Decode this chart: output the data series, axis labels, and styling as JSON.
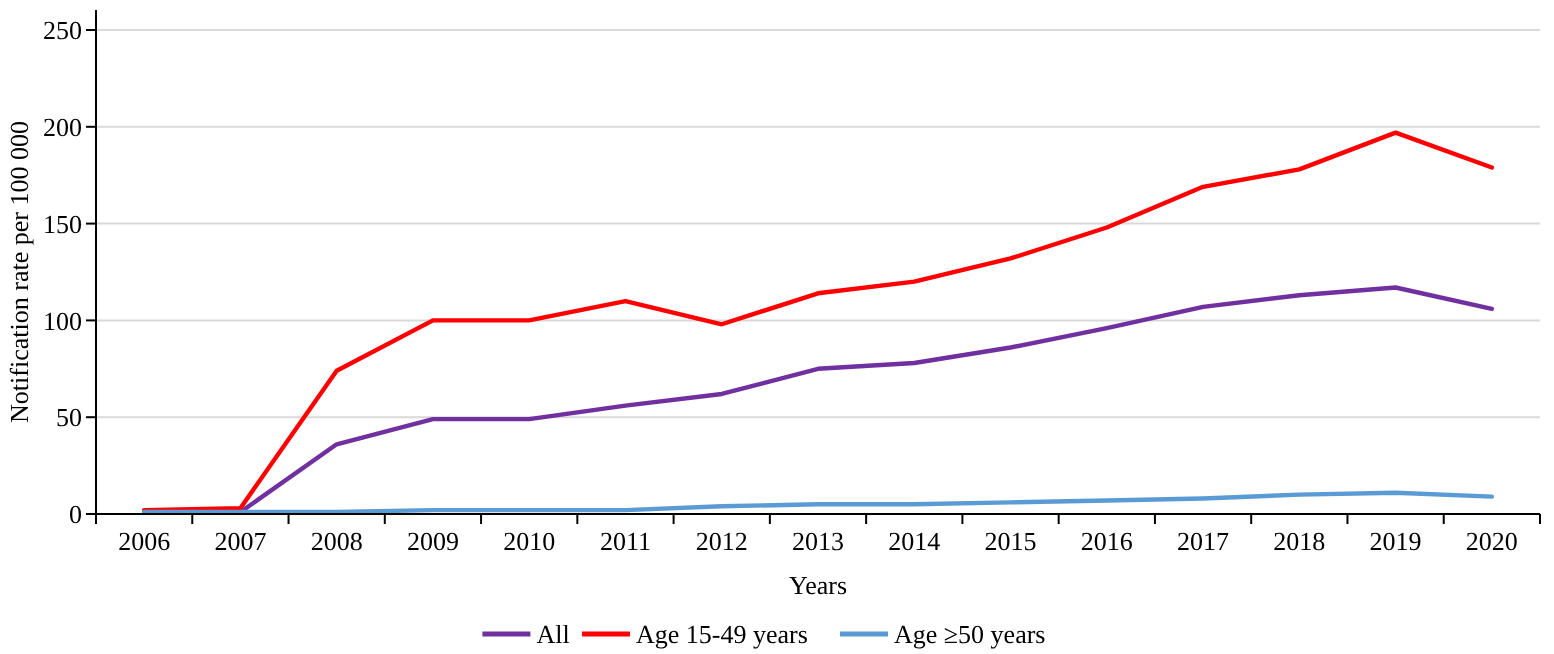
{
  "chart_data": {
    "type": "line",
    "xlabel": "Years",
    "ylabel": "Notification rate per 100 000",
    "categories": [
      "2006",
      "2007",
      "2008",
      "2009",
      "2010",
      "2011",
      "2012",
      "2013",
      "2014",
      "2015",
      "2016",
      "2017",
      "2018",
      "2019",
      "2020"
    ],
    "series": [
      {
        "name": "All",
        "color": "#7030a0",
        "values": [
          1,
          1,
          36,
          49,
          49,
          56,
          62,
          75,
          78,
          86,
          96,
          107,
          113,
          117,
          106
        ]
      },
      {
        "name": "Age 15-49 years",
        "color": "#ff0000",
        "values": [
          2,
          3,
          74,
          100,
          100,
          110,
          98,
          114,
          120,
          132,
          148,
          169,
          178,
          197,
          179
        ]
      },
      {
        "name": "Age ≥50 years",
        "color": "#5b9bd5",
        "values": [
          1,
          1,
          1,
          2,
          2,
          2,
          4,
          5,
          5,
          6,
          7,
          8,
          10,
          11,
          9
        ]
      }
    ],
    "ylim": [
      0,
      250
    ],
    "yticks": [
      0,
      50,
      100,
      150,
      200,
      250
    ],
    "grid": "y",
    "legend": "bottom",
    "marker": "none",
    "line_style": "solid"
  }
}
